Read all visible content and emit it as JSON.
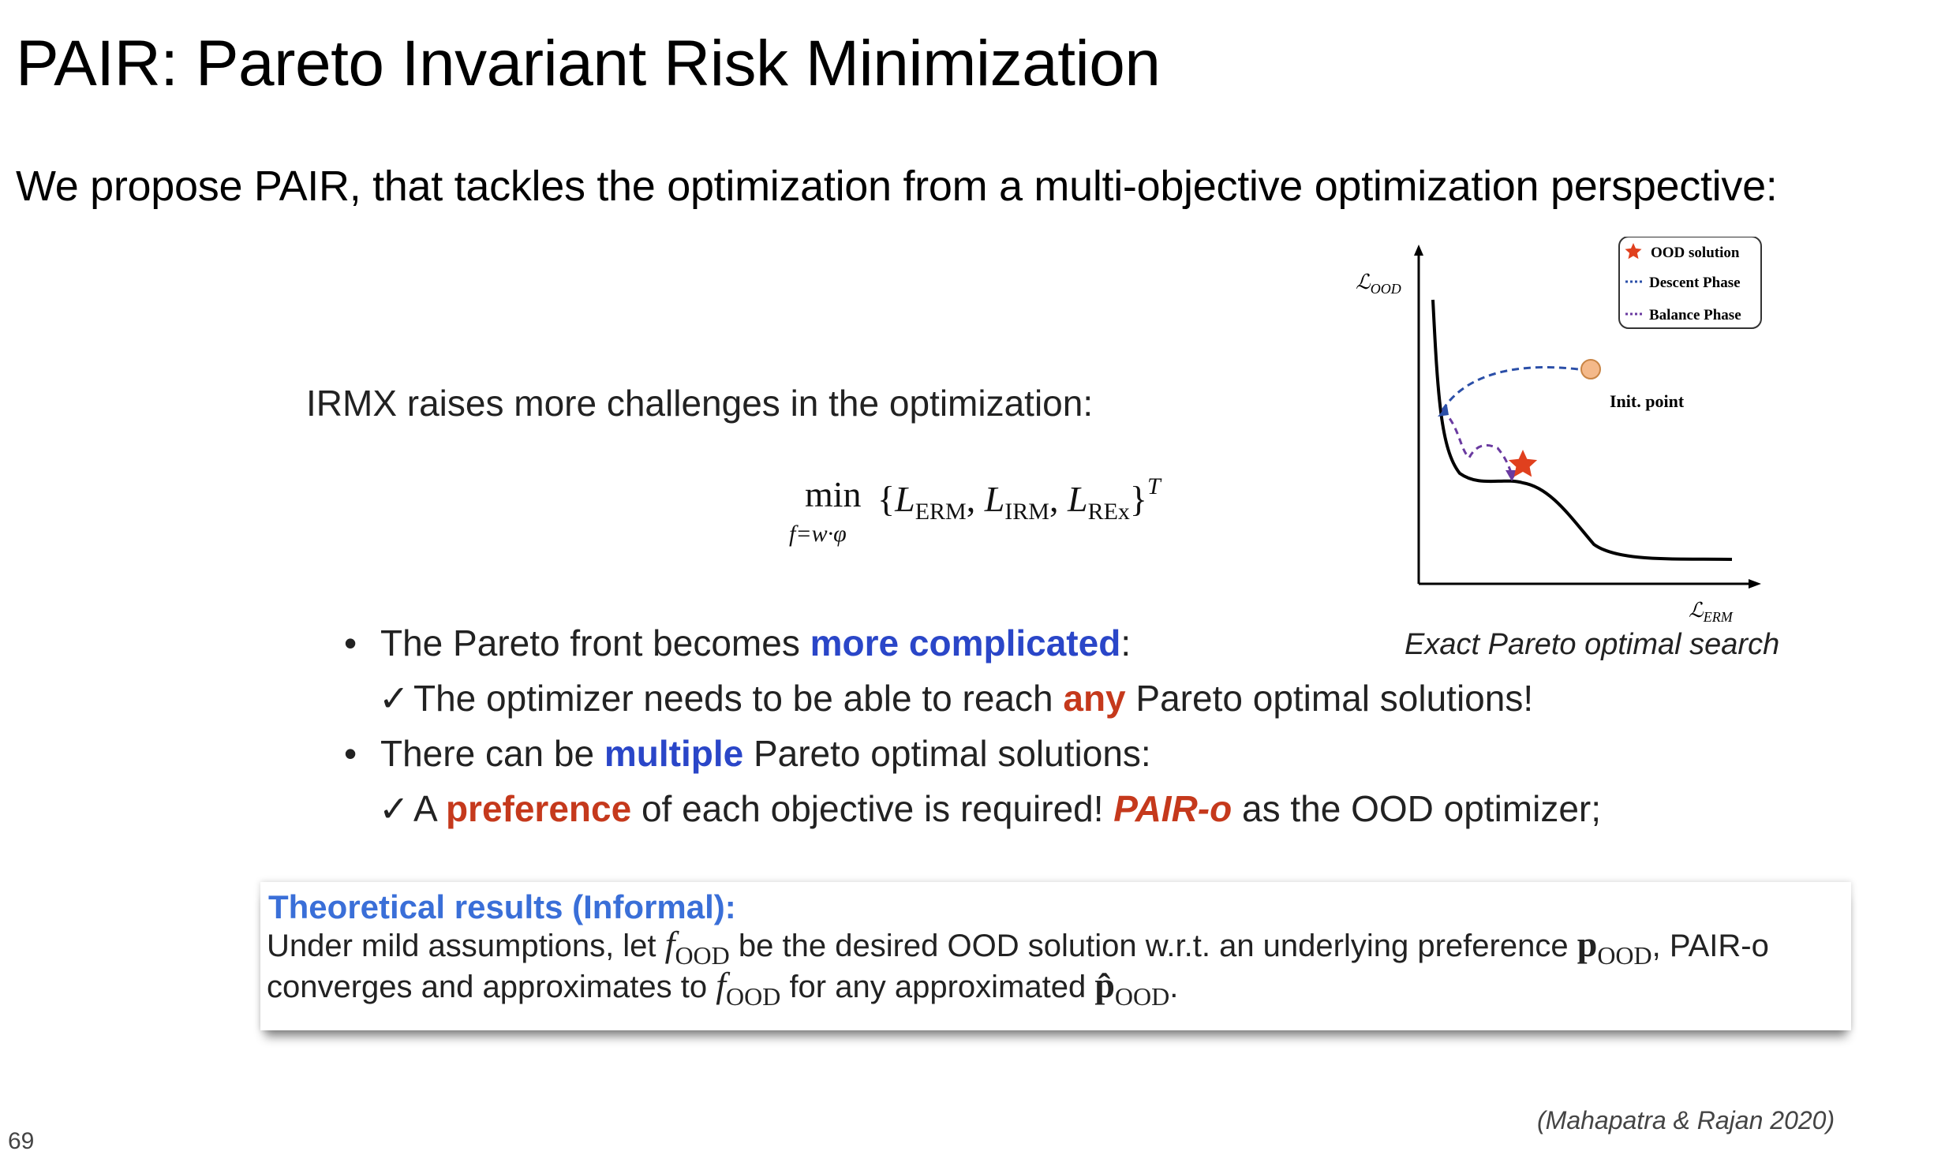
{
  "title": "PAIR: Pareto Invariant Risk Minimization",
  "subtitle": "We propose PAIR, that tackles the optimization from a multi-objective optimization perspective:",
  "intro": "IRMX raises more challenges in the optimization:",
  "formula": {
    "min": "min",
    "under": "f=w·φ",
    "open": "{",
    "L1": "L",
    "L1_sub": "ERM",
    "L2": "L",
    "L2_sub": "IRM",
    "L3": "L",
    "L3_sub": "REx",
    "close": "}",
    "sup": "T",
    "sep": ", "
  },
  "bullets": [
    {
      "pre": "The Pareto front becomes ",
      "em": "more complicated",
      "post": ":"
    },
    {
      "pre": "The optimizer needs to be able to reach ",
      "em": "any",
      "post": " Pareto optimal solutions!"
    },
    {
      "pre": "There can be ",
      "em": "multiple",
      "post": " Pareto optimal solutions:"
    },
    {
      "pre": "A ",
      "em": "preference",
      "mid": " of each objective is required! ",
      "em2": "PAIR-o",
      "post": " as the OOD optimizer;"
    }
  ],
  "bullet_symbol": "•",
  "check_symbol": "✓",
  "chart": {
    "y_label": "ℒ",
    "y_label_sub": "OOD",
    "x_label": "ℒ",
    "x_label_sub": "ERM",
    "legend": {
      "solution": "OOD solution",
      "descent": "Descent Phase",
      "balance": "Balance Phase"
    },
    "init_point": "Init. point",
    "caption": "Exact Pareto optimal search"
  },
  "theory": {
    "heading": "Theoretical results (Informal):",
    "line1_a": "Under mild assumptions, let ",
    "f": "f",
    "ood": "OOD",
    "line1_b": " be the desired OOD solution w.r.t. an underlying preference ",
    "p": "p",
    "line1_c": ", PAIR-o",
    "line2_a": "converges and approximates to ",
    "line2_b": " for any approximated ",
    "p_hat": "p̂",
    "period": "."
  },
  "citation": "(Mahapatra & Rajan 2020)",
  "page_number": "69",
  "colors": {
    "emphasis_blue": "#2a46c8",
    "emphasis_red": "#c5391c",
    "heading_blue": "#3a6fd8",
    "star": "#e0401e",
    "init_point": "#f4b98a",
    "descent": "#2b4fa8",
    "balance": "#6a3aa0"
  }
}
